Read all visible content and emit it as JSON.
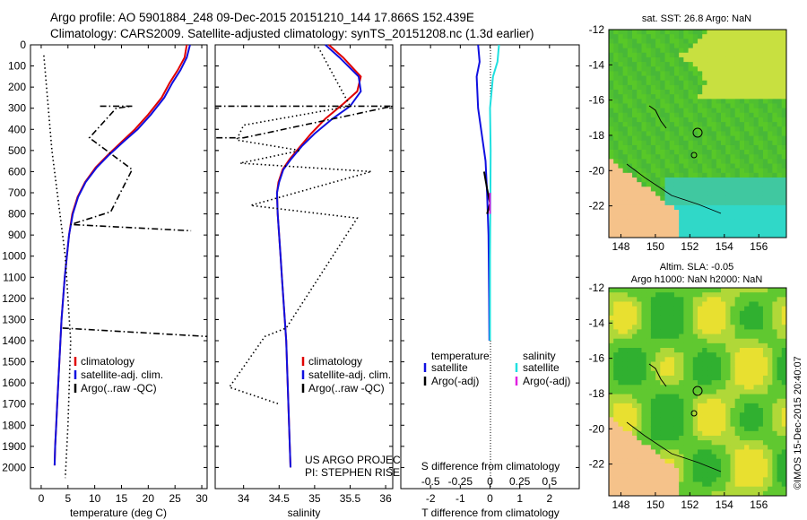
{
  "header": {
    "line1": "Argo profile: AO 5901884_248 09-Dec-2015 20151210_144 17.866S 152.439E",
    "line2": "Climatology: CARS2009. Satellite-adjusted climatology: synTS_20151208.nc (1.3d earlier)"
  },
  "credits": {
    "project": "US ARGO PROJECT",
    "pi": "PI: STEPHEN RISER"
  },
  "watermark": "©IMOS 15-Dec-2015 20:40:07",
  "colors": {
    "climatology": "#e00000",
    "satellite": "#1010e0",
    "argo": "#000000",
    "sal_satellite": "#20e0e0",
    "sal_argo": "#e020e0",
    "land": "#f5c28a",
    "green": "#50c030",
    "yellow": "#e8e030",
    "cyan": "#30d8c8"
  },
  "chart_data": [
    {
      "id": "temperature",
      "type": "line",
      "xlabel": "temperature (deg C)",
      "ylabel": "",
      "xlim": [
        -2,
        31
      ],
      "ylim": [
        2100,
        0
      ],
      "xticks": [
        0,
        5,
        10,
        15,
        20,
        25,
        30
      ],
      "yticks": [
        0,
        100,
        200,
        300,
        400,
        500,
        600,
        700,
        800,
        900,
        1000,
        1100,
        1200,
        1300,
        1400,
        1500,
        1600,
        1700,
        1800,
        1900,
        2000
      ],
      "legend": [
        "climatology",
        "satellite-adj. clim.",
        "Argo(..raw -QC)"
      ],
      "series": [
        {
          "name": "climatology",
          "color": "#e00000",
          "points": [
            [
              27.2,
              0
            ],
            [
              26.8,
              60
            ],
            [
              25.5,
              120
            ],
            [
              24,
              180
            ],
            [
              22.5,
              250
            ],
            [
              20,
              330
            ],
            [
              17.5,
              400
            ],
            [
              15,
              460
            ],
            [
              12.5,
              520
            ],
            [
              10.2,
              580
            ],
            [
              8.2,
              650
            ],
            [
              6.8,
              720
            ],
            [
              5.8,
              800
            ],
            [
              5.2,
              900
            ],
            [
              4.8,
              1000
            ],
            [
              4.4,
              1100
            ],
            [
              4.1,
              1200
            ],
            [
              3.8,
              1300
            ],
            [
              3.6,
              1400
            ],
            [
              3.4,
              1500
            ],
            [
              3.2,
              1600
            ],
            [
              3.0,
              1700
            ],
            [
              2.8,
              1800
            ],
            [
              2.6,
              1900
            ],
            [
              2.5,
              1990
            ]
          ]
        },
        {
          "name": "satellite-adj. clim.",
          "color": "#1010e0",
          "points": [
            [
              27.8,
              0
            ],
            [
              27.2,
              60
            ],
            [
              26,
              120
            ],
            [
              24.5,
              180
            ],
            [
              23,
              250
            ],
            [
              20.5,
              330
            ],
            [
              18,
              400
            ],
            [
              15.3,
              460
            ],
            [
              12.7,
              520
            ],
            [
              10.4,
              580
            ],
            [
              8.3,
              650
            ],
            [
              6.9,
              720
            ],
            [
              5.9,
              800
            ],
            [
              5.2,
              900
            ],
            [
              4.8,
              1000
            ],
            [
              4.4,
              1100
            ],
            [
              4.1,
              1200
            ],
            [
              3.8,
              1300
            ],
            [
              3.6,
              1400
            ],
            [
              3.4,
              1500
            ],
            [
              3.2,
              1600
            ],
            [
              3.0,
              1700
            ],
            [
              2.8,
              1800
            ],
            [
              2.6,
              1900
            ],
            [
              2.5,
              1990
            ]
          ]
        },
        {
          "name": "Argo(..raw -QC)",
          "color": "#000000",
          "dash": "dotted",
          "points": [
            [
              0.5,
              50
            ],
            [
              2,
              500
            ],
            [
              4.5,
              1000
            ],
            [
              5.5,
              1400
            ],
            [
              5,
              1800
            ],
            [
              4.5,
              2050
            ]
          ]
        },
        {
          "name": "Argo spike 1",
          "color": "#000000",
          "dash": "dotdash",
          "points": [
            [
              11,
              290
            ],
            [
              17,
              290
            ],
            [
              14,
              300
            ],
            [
              9,
              440
            ],
            [
              17,
              590
            ],
            [
              13,
              790
            ],
            [
              5.5,
              850
            ],
            [
              28,
              880
            ]
          ]
        },
        {
          "name": "Argo spike 2",
          "color": "#000000",
          "dash": "dotdash",
          "points": [
            [
              4,
              1340
            ],
            [
              31,
              1380
            ]
          ]
        }
      ]
    },
    {
      "id": "salinity",
      "type": "line",
      "xlabel": "salinity",
      "xlim": [
        33.6,
        36.1
      ],
      "ylim": [
        2100,
        0
      ],
      "xticks": [
        34,
        34.5,
        35,
        35.5,
        36
      ],
      "legend": [
        "climatology",
        "satellite-adj. clim.",
        "Argo(..raw -QC)"
      ],
      "series": [
        {
          "name": "climatology",
          "color": "#e00000",
          "points": [
            [
              35.2,
              0
            ],
            [
              35.4,
              60
            ],
            [
              35.65,
              150
            ],
            [
              35.6,
              220
            ],
            [
              35.4,
              280
            ],
            [
              35.15,
              350
            ],
            [
              34.95,
              420
            ],
            [
              34.8,
              480
            ],
            [
              34.65,
              540
            ],
            [
              34.55,
              590
            ],
            [
              34.49,
              650
            ],
            [
              34.47,
              700
            ],
            [
              34.48,
              800
            ],
            [
              34.5,
              900
            ],
            [
              34.52,
              1000
            ],
            [
              34.54,
              1100
            ],
            [
              34.56,
              1200
            ],
            [
              34.58,
              1300
            ],
            [
              34.6,
              1400
            ],
            [
              34.61,
              1500
            ],
            [
              34.62,
              1600
            ],
            [
              34.63,
              1700
            ],
            [
              34.64,
              1800
            ],
            [
              34.65,
              1900
            ],
            [
              34.66,
              2000
            ]
          ]
        },
        {
          "name": "satellite-adj. clim.",
          "color": "#1010e0",
          "points": [
            [
              35.15,
              0
            ],
            [
              35.35,
              60
            ],
            [
              35.62,
              150
            ],
            [
              35.65,
              220
            ],
            [
              35.5,
              290
            ],
            [
              35.25,
              350
            ],
            [
              35.0,
              420
            ],
            [
              34.82,
              480
            ],
            [
              34.67,
              540
            ],
            [
              34.56,
              590
            ],
            [
              34.5,
              650
            ],
            [
              34.47,
              700
            ],
            [
              34.48,
              800
            ],
            [
              34.5,
              900
            ],
            [
              34.52,
              1000
            ],
            [
              34.54,
              1100
            ],
            [
              34.56,
              1200
            ],
            [
              34.58,
              1300
            ],
            [
              34.6,
              1400
            ],
            [
              34.61,
              1500
            ],
            [
              34.62,
              1600
            ],
            [
              34.63,
              1700
            ],
            [
              34.64,
              1800
            ],
            [
              34.65,
              1900
            ],
            [
              34.66,
              2000
            ]
          ]
        },
        {
          "name": "Argo(..raw -QC)",
          "color": "#000000",
          "dash": "dotted",
          "points": [
            [
              35.05,
              10
            ],
            [
              35.5,
              290
            ],
            [
              34.0,
              380
            ],
            [
              33.9,
              450
            ],
            [
              34.8,
              500
            ],
            [
              33.95,
              560
            ],
            [
              35.8,
              600
            ],
            [
              34.1,
              760
            ],
            [
              35.6,
              820
            ],
            [
              34.6,
              1340
            ],
            [
              34.3,
              1380
            ],
            [
              33.8,
              1620
            ],
            [
              34.5,
              1700
            ]
          ]
        },
        {
          "name": "Argo spike",
          "color": "#000000",
          "dash": "dotdash",
          "points": [
            [
              33.6,
              290
            ],
            [
              36.1,
              290
            ],
            [
              34.0,
              440
            ],
            [
              33.6,
              440
            ]
          ]
        }
      ]
    },
    {
      "id": "difference",
      "type": "line",
      "xlabel": "T difference from climatology",
      "toplabel": "S difference from climatology",
      "xlim": [
        -3,
        3
      ],
      "ylim": [
        2100,
        0
      ],
      "xticks": [
        -2,
        -1,
        0,
        1,
        2
      ],
      "s_ticks": [
        "-0.5",
        "-0.25",
        "0",
        "0.25",
        "0.5"
      ],
      "legend_titles": [
        "temperature",
        "salinity"
      ],
      "legend": [
        "satellite",
        "Argo(-adj)",
        "satellite",
        "Argo(-adj)"
      ],
      "series": [
        {
          "name": "T satellite",
          "color": "#1010e0",
          "points": [
            [
              -0.4,
              0
            ],
            [
              -0.35,
              80
            ],
            [
              -0.45,
              150
            ],
            [
              -0.4,
              300
            ],
            [
              -0.25,
              450
            ],
            [
              -0.15,
              550
            ],
            [
              -0.1,
              700
            ],
            [
              -0.05,
              900
            ],
            [
              -0.03,
              1200
            ],
            [
              -0.02,
              1400
            ]
          ]
        },
        {
          "name": "S satellite",
          "color": "#20e0e0",
          "points": [
            [
              0.3,
              0
            ],
            [
              0.25,
              80
            ],
            [
              0.1,
              150
            ],
            [
              0.0,
              300
            ],
            [
              0.02,
              500
            ],
            [
              0.01,
              800
            ],
            [
              0.0,
              1000
            ],
            [
              0.0,
              1400
            ]
          ]
        },
        {
          "name": "T Argo",
          "color": "#000000",
          "points": [
            [
              -0.2,
              600
            ],
            [
              -0.1,
              680
            ],
            [
              0.0,
              750
            ],
            [
              -0.1,
              800
            ]
          ]
        },
        {
          "name": "S Argo",
          "color": "#e020e0",
          "points": [
            [
              0.0,
              700
            ],
            [
              0.0,
              800
            ]
          ]
        }
      ]
    }
  ],
  "maps": [
    {
      "id": "sst-map",
      "title": "sat. SST: 26.8 Argo: NaN",
      "lat_ticks": [
        -12,
        -14,
        -16,
        -18,
        -20,
        -22
      ],
      "lon_ticks": [
        148,
        150,
        152,
        154,
        156
      ]
    },
    {
      "id": "sla-map",
      "title1": "Altim. SLA: -0.05",
      "title2": "Argo h1000: NaN h2000: NaN",
      "lat_ticks": [
        -12,
        -14,
        -16,
        -18,
        -20,
        -22
      ],
      "lon_ticks": [
        148,
        150,
        152,
        154,
        156
      ]
    }
  ]
}
